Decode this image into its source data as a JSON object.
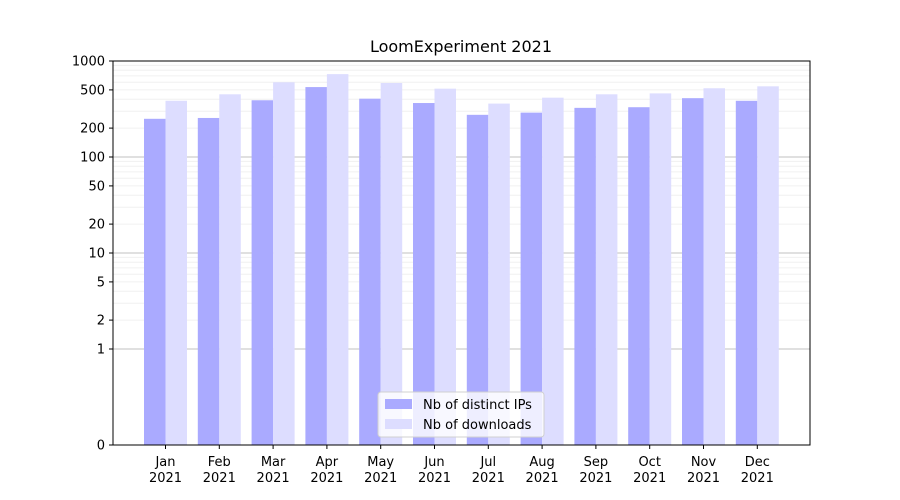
{
  "chart_data": {
    "type": "bar",
    "title": "LoomExperiment 2021",
    "xlabel": "",
    "ylabel": "",
    "y_scale": "symlog",
    "ylim": [
      0,
      1000
    ],
    "y_ticks": [
      0,
      1,
      2,
      5,
      10,
      20,
      50,
      100,
      200,
      500,
      1000
    ],
    "categories": [
      {
        "month": "Jan",
        "year": "2021"
      },
      {
        "month": "Feb",
        "year": "2021"
      },
      {
        "month": "Mar",
        "year": "2021"
      },
      {
        "month": "Apr",
        "year": "2021"
      },
      {
        "month": "May",
        "year": "2021"
      },
      {
        "month": "Jun",
        "year": "2021"
      },
      {
        "month": "Jul",
        "year": "2021"
      },
      {
        "month": "Aug",
        "year": "2021"
      },
      {
        "month": "Sep",
        "year": "2021"
      },
      {
        "month": "Oct",
        "year": "2021"
      },
      {
        "month": "Nov",
        "year": "2021"
      },
      {
        "month": "Dec",
        "year": "2021"
      }
    ],
    "series": [
      {
        "name": "Nb of distinct IPs",
        "color": "#aaaaff",
        "values": [
          250,
          255,
          390,
          535,
          405,
          365,
          275,
          290,
          325,
          330,
          410,
          385
        ]
      },
      {
        "name": "Nb of downloads",
        "color": "#ddddff",
        "values": [
          385,
          450,
          600,
          730,
          590,
          515,
          360,
          415,
          450,
          460,
          520,
          545
        ]
      }
    ],
    "grid": true,
    "legend_position": "bottom-center"
  }
}
